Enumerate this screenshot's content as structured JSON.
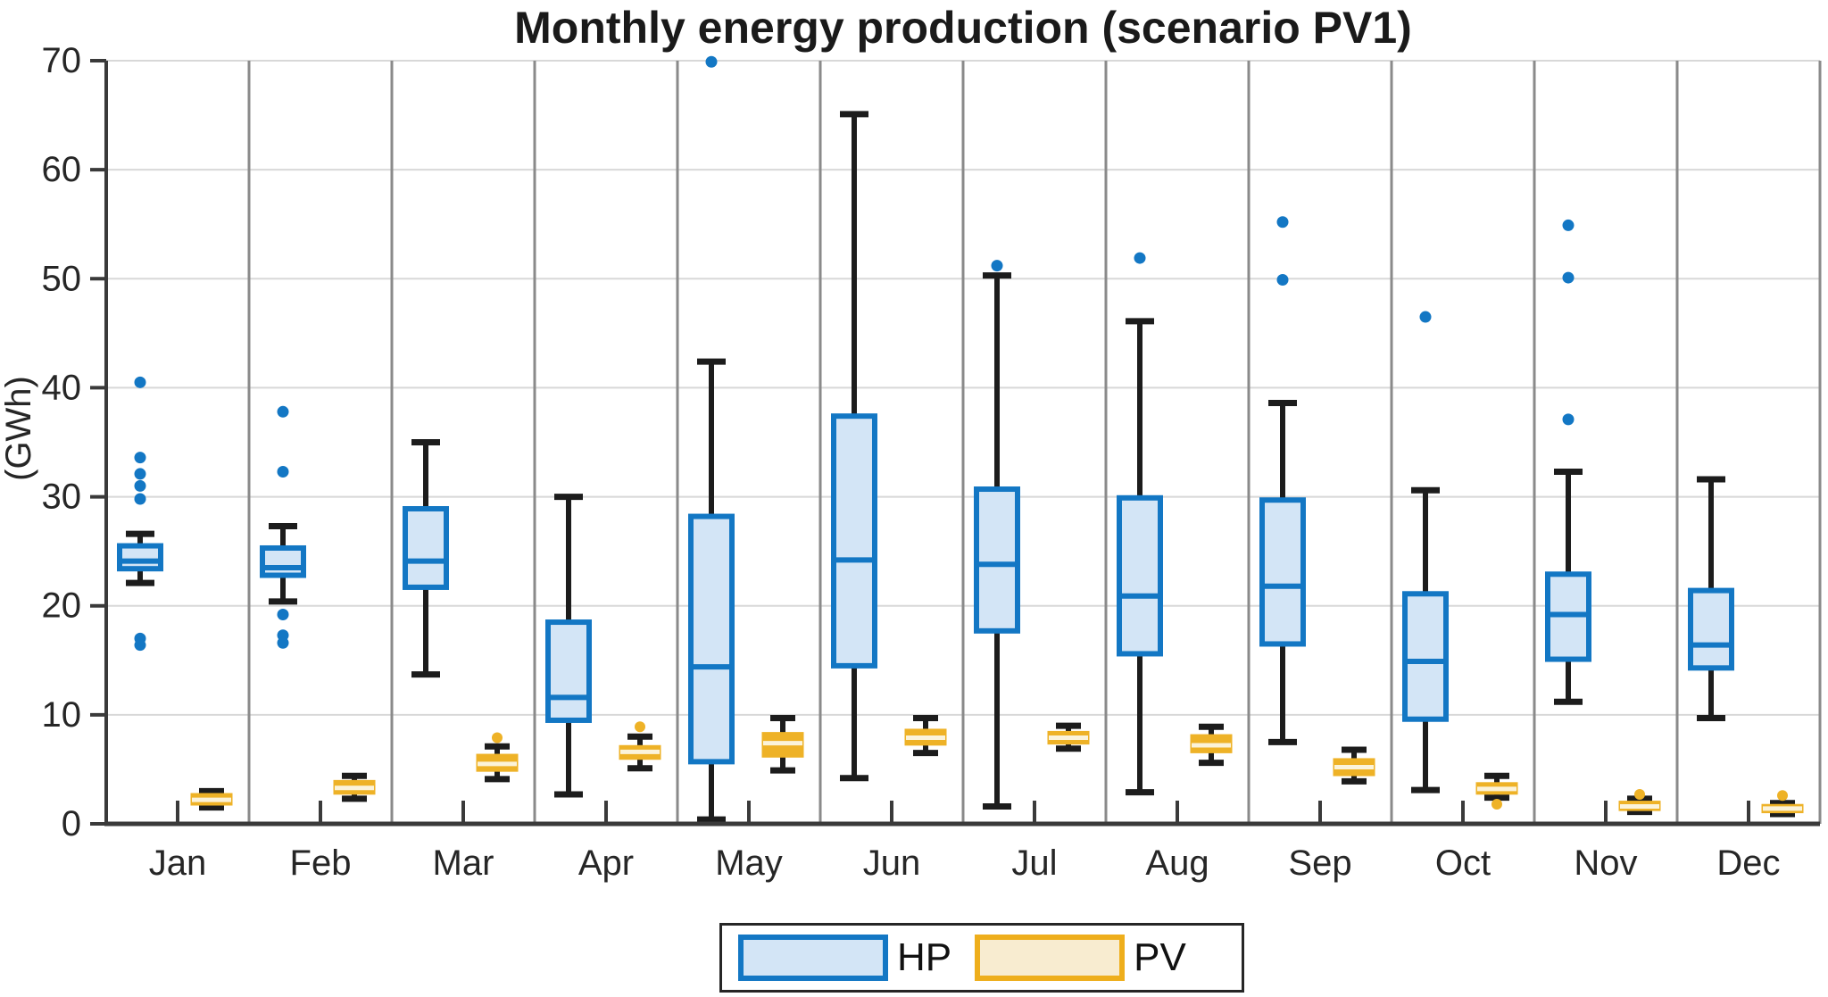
{
  "chart_data": {
    "type": "boxplot",
    "title": "Monthly energy production (scenario PV1)",
    "ylabel": "(GWh)",
    "ylim": [
      0,
      70
    ],
    "y_ticks": [
      0,
      10,
      20,
      30,
      40,
      50,
      60,
      70
    ],
    "months": [
      "Jan",
      "Feb",
      "Mar",
      "Apr",
      "May",
      "Jun",
      "Jul",
      "Aug",
      "Sep",
      "Oct",
      "Nov",
      "Dec"
    ],
    "grid": {
      "horizontal_gridlines": true,
      "vertical_month_separators": true,
      "legend_position": "bottom-center"
    },
    "series": [
      {
        "name": "HP",
        "box_color": "#1377c4",
        "box_fill": "#d3e5f6",
        "boxes": [
          {
            "month": "Jan",
            "whislo": 22.1,
            "q1": 23.4,
            "med": 24.1,
            "q3": 25.5,
            "whishi": 26.6,
            "outliers": [
              40.5,
              33.6,
              32.1,
              31.0,
              29.8,
              17.0,
              16.4
            ]
          },
          {
            "month": "Feb",
            "whislo": 20.4,
            "q1": 22.8,
            "med": 23.5,
            "q3": 25.3,
            "whishi": 27.3,
            "outliers": [
              37.8,
              32.3,
              19.2,
              17.3,
              16.6
            ]
          },
          {
            "month": "Mar",
            "whislo": 13.7,
            "q1": 21.7,
            "med": 24.1,
            "q3": 28.9,
            "whishi": 35.0,
            "outliers": []
          },
          {
            "month": "Apr",
            "whislo": 2.7,
            "q1": 9.5,
            "med": 11.6,
            "q3": 18.5,
            "whishi": 30.0,
            "outliers": []
          },
          {
            "month": "May",
            "whislo": 0.4,
            "q1": 5.7,
            "med": 14.4,
            "q3": 28.2,
            "whishi": 42.4,
            "outliers": [
              69.9
            ]
          },
          {
            "month": "Jun",
            "whislo": 4.2,
            "q1": 14.5,
            "med": 24.2,
            "q3": 37.4,
            "whishi": 65.1,
            "outliers": []
          },
          {
            "month": "Jul",
            "whislo": 1.6,
            "q1": 17.7,
            "med": 23.8,
            "q3": 30.7,
            "whishi": 50.3,
            "outliers": [
              51.2
            ]
          },
          {
            "month": "Aug",
            "whislo": 2.9,
            "q1": 15.6,
            "med": 20.9,
            "q3": 29.9,
            "whishi": 46.1,
            "outliers": [
              51.9
            ]
          },
          {
            "month": "Sep",
            "whislo": 7.5,
            "q1": 16.5,
            "med": 21.8,
            "q3": 29.7,
            "whishi": 38.6,
            "outliers": [
              55.2,
              49.9
            ]
          },
          {
            "month": "Oct",
            "whislo": 3.1,
            "q1": 9.6,
            "med": 14.9,
            "q3": 21.1,
            "whishi": 30.6,
            "outliers": [
              46.5
            ]
          },
          {
            "month": "Nov",
            "whislo": 11.2,
            "q1": 15.1,
            "med": 19.2,
            "q3": 22.9,
            "whishi": 32.3,
            "outliers": [
              54.9,
              50.1,
              37.1
            ]
          },
          {
            "month": "Dec",
            "whislo": 9.7,
            "q1": 14.3,
            "med": 16.4,
            "q3": 21.4,
            "whishi": 31.6,
            "outliers": []
          }
        ]
      },
      {
        "name": "PV",
        "box_color": "#eeb227",
        "box_fill": "#eeb227",
        "boxes": [
          {
            "month": "Jan",
            "whislo": 1.5,
            "q1": 1.8,
            "med": 2.2,
            "q3": 2.7,
            "whishi": 3.0,
            "outliers": []
          },
          {
            "month": "Feb",
            "whislo": 2.3,
            "q1": 2.8,
            "med": 3.3,
            "q3": 3.9,
            "whishi": 4.4,
            "outliers": []
          },
          {
            "month": "Mar",
            "whislo": 4.1,
            "q1": 4.9,
            "med": 5.5,
            "q3": 6.3,
            "whishi": 7.1,
            "outliers": [
              7.9
            ]
          },
          {
            "month": "Apr",
            "whislo": 5.1,
            "q1": 6.0,
            "med": 6.6,
            "q3": 7.1,
            "whishi": 8.0,
            "outliers": [
              8.9
            ]
          },
          {
            "month": "May",
            "whislo": 4.9,
            "q1": 6.2,
            "med": 7.4,
            "q3": 8.3,
            "whishi": 9.7,
            "outliers": []
          },
          {
            "month": "Jun",
            "whislo": 6.5,
            "q1": 7.3,
            "med": 7.9,
            "q3": 8.6,
            "whishi": 9.7,
            "outliers": []
          },
          {
            "month": "Jul",
            "whislo": 6.9,
            "q1": 7.4,
            "med": 7.9,
            "q3": 8.4,
            "whishi": 9.0,
            "outliers": []
          },
          {
            "month": "Aug",
            "whislo": 5.6,
            "q1": 6.6,
            "med": 7.2,
            "q3": 8.1,
            "whishi": 8.9,
            "outliers": []
          },
          {
            "month": "Sep",
            "whislo": 3.9,
            "q1": 4.5,
            "med": 5.2,
            "q3": 5.9,
            "whishi": 6.8,
            "outliers": []
          },
          {
            "month": "Oct",
            "whislo": 2.4,
            "q1": 2.8,
            "med": 3.2,
            "q3": 3.7,
            "whishi": 4.4,
            "outliers": [
              1.8
            ]
          },
          {
            "month": "Nov",
            "whislo": 1.1,
            "q1": 1.3,
            "med": 1.6,
            "q3": 2.0,
            "whishi": 2.3,
            "outliers": [
              2.7
            ]
          },
          {
            "month": "Dec",
            "whislo": 0.9,
            "q1": 1.1,
            "med": 1.4,
            "q3": 1.7,
            "whishi": 1.9,
            "outliers": [
              2.6
            ]
          }
        ]
      }
    ],
    "colors": {
      "hp_stroke": "#1377c4",
      "hp_fill": "#d3e5f6",
      "pv_fill": "#eeb227",
      "pv_median_stripe": "#fbf3da",
      "whisker": "#1c1c1c",
      "gridline": "#d8d8d8",
      "month_separator": "#8a8a8a",
      "axis": "#3a3a3a",
      "tick_label": "#262626",
      "legend_pv_swatch_fill": "#f8ecd0"
    }
  }
}
